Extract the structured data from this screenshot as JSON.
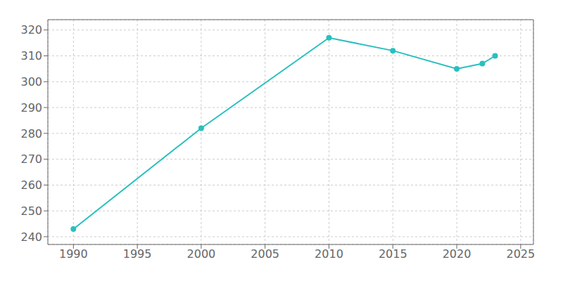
{
  "chart_data": {
    "type": "line",
    "x": [
      1990,
      2000,
      2010,
      2015,
      2020,
      2022,
      2023
    ],
    "values": [
      243,
      282,
      317,
      312,
      305,
      307,
      310
    ],
    "color": "#2ABFBF",
    "marker": "circle",
    "xlim": [
      1988,
      2026
    ],
    "ylim": [
      237,
      324
    ],
    "xticks": [
      1990,
      1995,
      2000,
      2005,
      2010,
      2015,
      2020,
      2025
    ],
    "yticks": [
      240,
      250,
      260,
      270,
      280,
      290,
      300,
      310,
      320
    ],
    "grid": true
  }
}
